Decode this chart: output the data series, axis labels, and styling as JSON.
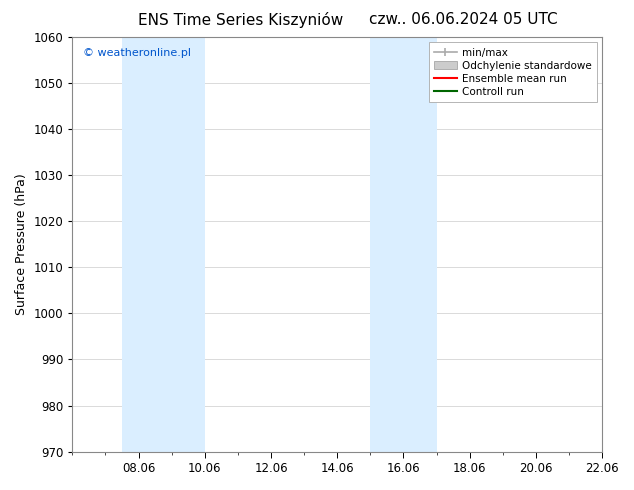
{
  "title_left": "ENS Time Series Kiszyniów",
  "title_right": "czw.. 06.06.2024 05 UTC",
  "ylabel": "Surface Pressure (hPa)",
  "ylim": [
    970,
    1060
  ],
  "yticks": [
    970,
    980,
    990,
    1000,
    1010,
    1020,
    1030,
    1040,
    1050,
    1060
  ],
  "xlim": [
    0,
    16
  ],
  "xtick_positions": [
    2,
    4,
    6,
    8,
    10,
    12,
    14,
    16
  ],
  "xtick_labels": [
    "08.06",
    "10.06",
    "12.06",
    "14.06",
    "16.06",
    "18.06",
    "20.06",
    "22.06"
  ],
  "watermark": "© weatheronline.pl",
  "watermark_color": "#0055cc",
  "background_color": "#ffffff",
  "plot_bg_color": "#ffffff",
  "shaded_bands": [
    {
      "x_start": 1.5,
      "x_end": 4.0,
      "color": "#daeeff"
    },
    {
      "x_start": 9.0,
      "x_end": 11.0,
      "color": "#daeeff"
    }
  ],
  "legend_items": [
    {
      "label": "min/max",
      "color": "#aaaaaa",
      "lw": 1.5
    },
    {
      "label": "Odchylenie standardowe",
      "color": "#cccccc",
      "lw": 8
    },
    {
      "label": "Ensemble mean run",
      "color": "#ff0000",
      "lw": 1.5
    },
    {
      "label": "Controll run",
      "color": "#007700",
      "lw": 1.5
    }
  ],
  "grid_color": "#cccccc",
  "title_fontsize": 11,
  "axis_fontsize": 9,
  "tick_fontsize": 8.5,
  "legend_fontsize": 7.5
}
